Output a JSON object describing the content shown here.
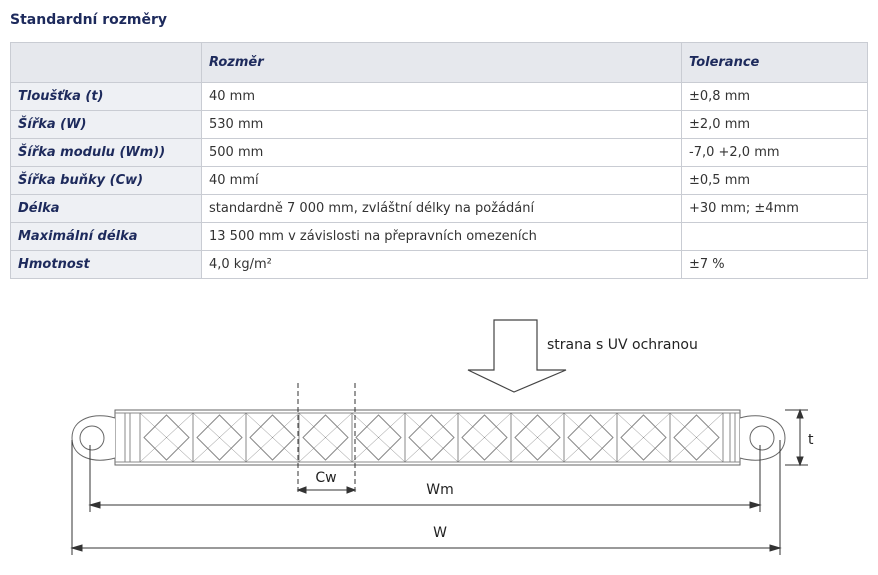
{
  "title": "Standardní rozměry",
  "table": {
    "header": [
      "",
      "Rozměr",
      "Tolerance"
    ],
    "rows": [
      [
        "Tloušťka (t)",
        "40 mm",
        "±0,8 mm"
      ],
      [
        "Šířka (W)",
        "530 mm",
        "±2,0 mm"
      ],
      [
        "Šířka modulu (Wm))",
        "500 mm",
        "-7,0 +2,0 mm"
      ],
      [
        "Šířka buňky (Cw)",
        "40 mmí",
        "±0,5 mm"
      ],
      [
        "Délka",
        "standardně 7 000 mm, zvláštní délky na požádání",
        "+30 mm; ±4mm"
      ],
      [
        "Maximální délka",
        "13 500 mm v závislosti na přepravních omezeních",
        ""
      ],
      [
        "Hmotnost",
        "4,0 kg/m²",
        "±7 %"
      ]
    ]
  },
  "diagram": {
    "uv_label": "strana s UV ochranou",
    "cw": "Cw",
    "wm": "Wm",
    "w": "W",
    "t": "t"
  }
}
